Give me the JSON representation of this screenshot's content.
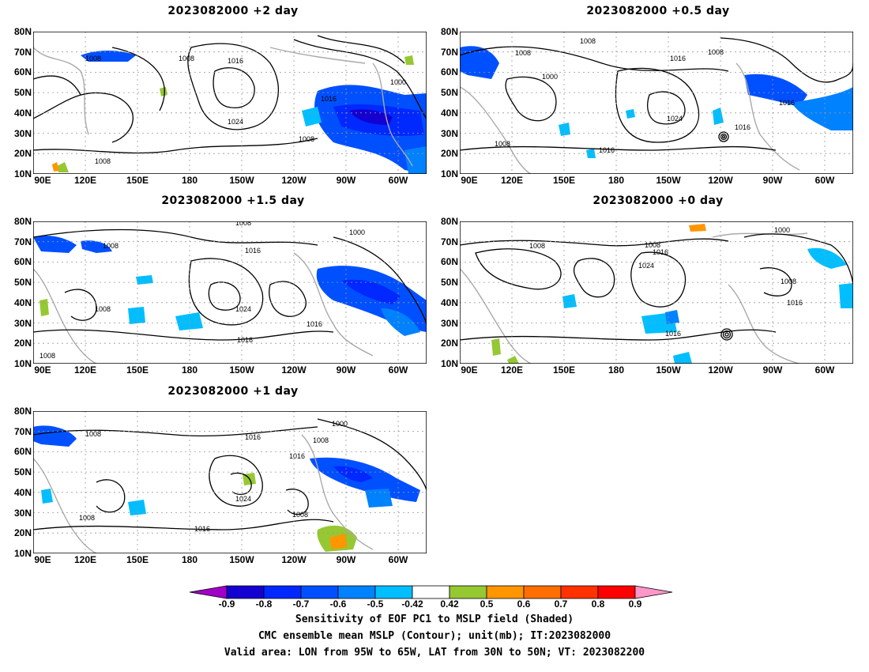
{
  "panels": [
    {
      "id": "p2",
      "title": "2023082000  +2 day"
    },
    {
      "id": "p05",
      "title": "2023082000  +0.5 day"
    },
    {
      "id": "p15",
      "title": "2023082000  +1.5 day"
    },
    {
      "id": "p0",
      "title": "2023082000  +0 day"
    },
    {
      "id": "p1",
      "title": "2023082000  +1 day"
    }
  ],
  "axes": {
    "lat_labels": [
      "80N",
      "70N",
      "60N",
      "50N",
      "40N",
      "30N",
      "20N",
      "10N"
    ],
    "lon_labels": [
      "90E",
      "120E",
      "150E",
      "180",
      "150W",
      "120W",
      "90W",
      "60W"
    ]
  },
  "isobar_labels": {
    "p2": [
      "1008",
      "1008",
      "1016",
      "1000",
      "1016",
      "1024",
      "1008",
      "1008"
    ],
    "p05": [
      "1008",
      "1008",
      "1008",
      "1000",
      "1016",
      "1016",
      "1024",
      "1016",
      "1008",
      "1016"
    ],
    "p15": [
      "1008",
      "1016",
      "1000",
      "1008",
      "1024",
      "1016",
      "1016",
      "1008"
    ],
    "p0": [
      "1000",
      "1008",
      "1008",
      "1016",
      "1024",
      "1008",
      "1016",
      "1016"
    ],
    "p1": [
      "1008",
      "1016",
      "1008",
      "1000",
      "1016",
      "1024",
      "1008",
      "1008",
      "1016"
    ]
  },
  "colorbar": {
    "labels": [
      "-0.9",
      "-0.8",
      "-0.7",
      "-0.6",
      "-0.5",
      "-0.42",
      "0.42",
      "0.5",
      "0.6",
      "0.7",
      "0.8",
      "0.9"
    ],
    "colors": [
      "#a000c8",
      "#1400d0",
      "#0028ff",
      "#0050ff",
      "#0082ff",
      "#00beff",
      "#ffffff",
      "#96c832",
      "#ff9600",
      "#ff6e00",
      "#ff3200",
      "#ff0000",
      "#ff96c8"
    ]
  },
  "caption": {
    "line1": "Sensitivity of EOF PC1 to MSLP field (Shaded)",
    "line2": "CMC ensemble mean MSLP (Contour); unit(mb); IT:2023082000",
    "line3": "Valid area: LON from 95W to 65W, LAT from 30N to 50N; VT: 2023082200"
  }
}
